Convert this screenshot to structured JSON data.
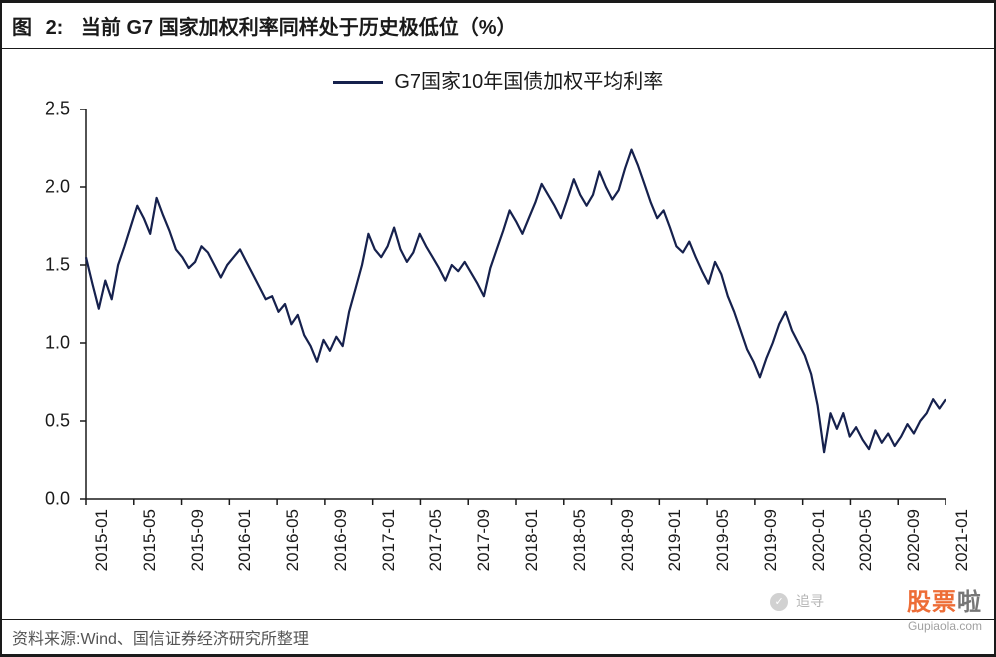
{
  "figure": {
    "label": "图",
    "number": "2:",
    "title": "当前 G7 国家加权利率同样处于历史极低位（%）"
  },
  "legend": {
    "series_label": "G7国家10年国债加权平均利率",
    "line_color": "#16214d"
  },
  "source": {
    "text": "资料来源:Wind、国信证券经济研究所整理"
  },
  "watermark": {
    "main": "股票",
    "accent": "啦",
    "sub": "Gupiaola.com",
    "secondary": "追寻"
  },
  "chart": {
    "type": "line",
    "background_color": "#ffffff",
    "axis_color": "#1a1a1a",
    "axis_width": 1.5,
    "tick_length": 6,
    "line_color": "#16214d",
    "line_width": 2.2,
    "y_axis": {
      "min": 0.0,
      "max": 2.5,
      "tick_step": 0.5,
      "ticks": [
        "0.0",
        "0.5",
        "1.0",
        "1.5",
        "2.0",
        "2.5"
      ],
      "label_fontsize": 18
    },
    "x_axis": {
      "categories": [
        "2015-01",
        "2015-05",
        "2015-09",
        "2016-01",
        "2016-05",
        "2016-09",
        "2017-01",
        "2017-05",
        "2017-09",
        "2018-01",
        "2018-05",
        "2018-09",
        "2019-01",
        "2019-05",
        "2019-09",
        "2020-01",
        "2020-05",
        "2020-09",
        "2021-01"
      ],
      "label_fontsize": 17,
      "label_rotation": -90
    },
    "series": [
      {
        "name": "G7 10Y weighted avg yield",
        "values": [
          1.55,
          1.38,
          1.22,
          1.4,
          1.28,
          1.5,
          1.62,
          1.75,
          1.88,
          1.8,
          1.7,
          1.93,
          1.82,
          1.72,
          1.6,
          1.55,
          1.48,
          1.52,
          1.62,
          1.58,
          1.5,
          1.42,
          1.5,
          1.55,
          1.6,
          1.52,
          1.44,
          1.36,
          1.28,
          1.3,
          1.2,
          1.25,
          1.12,
          1.18,
          1.05,
          0.98,
          0.88,
          1.02,
          0.95,
          1.04,
          0.98,
          1.2,
          1.35,
          1.5,
          1.7,
          1.6,
          1.55,
          1.62,
          1.74,
          1.6,
          1.52,
          1.58,
          1.7,
          1.62,
          1.55,
          1.48,
          1.4,
          1.5,
          1.46,
          1.52,
          1.45,
          1.38,
          1.3,
          1.48,
          1.6,
          1.72,
          1.85,
          1.78,
          1.7,
          1.8,
          1.9,
          2.02,
          1.95,
          1.88,
          1.8,
          1.92,
          2.05,
          1.95,
          1.88,
          1.95,
          2.1,
          2.0,
          1.92,
          1.98,
          2.12,
          2.24,
          2.14,
          2.02,
          1.9,
          1.8,
          1.85,
          1.74,
          1.62,
          1.58,
          1.65,
          1.55,
          1.46,
          1.38,
          1.52,
          1.44,
          1.3,
          1.2,
          1.08,
          0.96,
          0.88,
          0.78,
          0.9,
          1.0,
          1.12,
          1.2,
          1.08,
          1.0,
          0.92,
          0.8,
          0.6,
          0.3,
          0.55,
          0.45,
          0.55,
          0.4,
          0.46,
          0.38,
          0.32,
          0.44,
          0.36,
          0.42,
          0.34,
          0.4,
          0.48,
          0.42,
          0.5,
          0.55,
          0.64,
          0.58,
          0.64
        ]
      }
    ]
  }
}
